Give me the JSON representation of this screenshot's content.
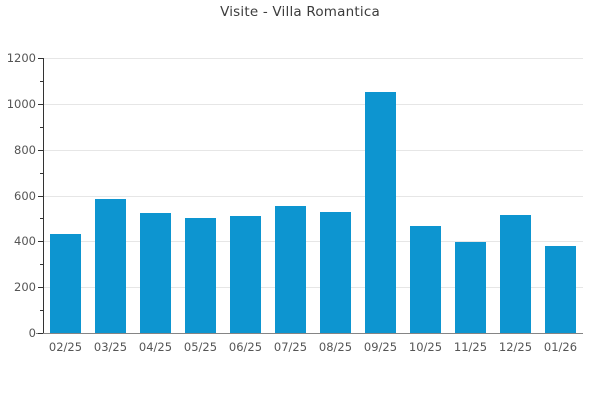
{
  "chart_data": {
    "type": "bar",
    "title": "Visite - Villa Romantica",
    "categories": [
      "02/25",
      "03/25",
      "04/25",
      "05/25",
      "06/25",
      "07/25",
      "08/25",
      "09/25",
      "10/25",
      "11/25",
      "12/25",
      "01/26"
    ],
    "values": [
      430,
      585,
      525,
      500,
      510,
      555,
      530,
      1050,
      465,
      395,
      515,
      380
    ],
    "xlabel": "",
    "ylabel": "",
    "ylim": [
      0,
      1200
    ],
    "y_major_ticks": [
      0,
      200,
      400,
      600,
      800,
      1000,
      1200
    ],
    "y_minor_tick_step": 100,
    "grid": "horizontal-major",
    "legend": "none",
    "colors": {
      "bar": "#0d95d0",
      "grid": "#e6e6e6",
      "y_axis": "#333333",
      "x_axis": "#858585",
      "tick_label": "#555555",
      "title": "#3c3c3c",
      "background": "#ffffff"
    }
  }
}
